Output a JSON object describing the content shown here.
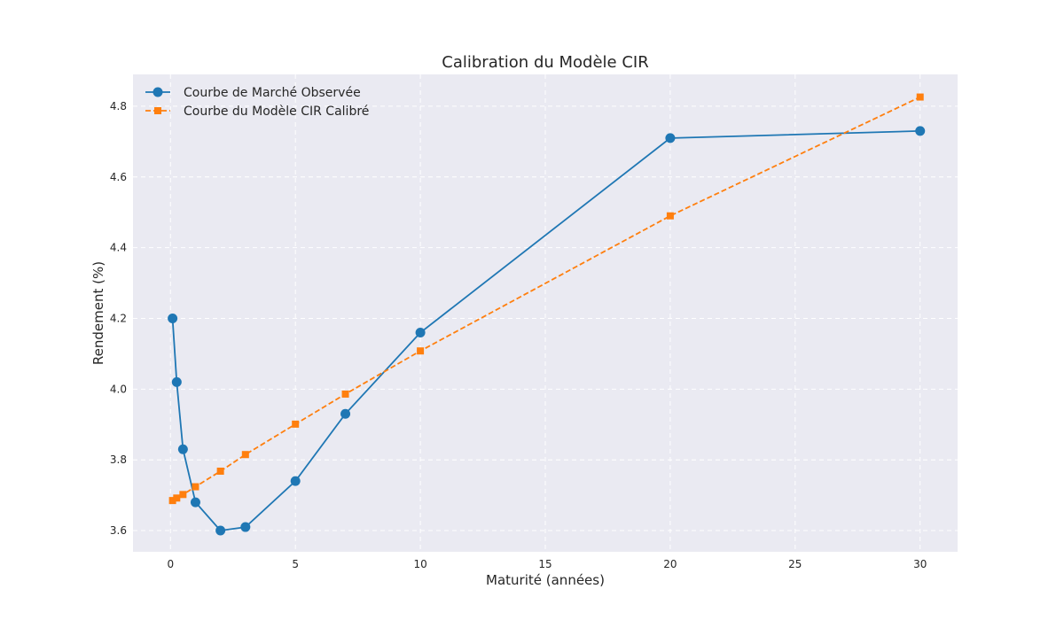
{
  "chart_data": {
    "type": "line",
    "title": "Calibration du Modèle CIR",
    "xlabel": "Maturité (années)",
    "ylabel": "Rendement (%)",
    "xlim": [
      -1.5,
      31.5
    ],
    "ylim": [
      3.54,
      4.89
    ],
    "xticks": [
      0,
      5,
      10,
      15,
      20,
      25,
      30
    ],
    "yticks": [
      3.6,
      3.8,
      4.0,
      4.2,
      4.4,
      4.6,
      4.8
    ],
    "xtick_labels": [
      "0",
      "5",
      "10",
      "15",
      "20",
      "25",
      "30"
    ],
    "ytick_labels": [
      "3.6",
      "3.8",
      "4.0",
      "4.2",
      "4.4",
      "4.6",
      "4.8"
    ],
    "grid": true,
    "grid_style": "dashed",
    "legend_position": "top-left",
    "background_color": "#eaeaf2",
    "series": [
      {
        "name": "Courbe de Marché Observée",
        "color": "#1f77b4",
        "marker": "circle",
        "linestyle": "solid",
        "x": [
          0.083,
          0.25,
          0.5,
          1,
          2,
          3,
          5,
          7,
          10,
          20,
          30
        ],
        "y": [
          4.2,
          4.02,
          3.83,
          3.68,
          3.6,
          3.61,
          3.74,
          3.93,
          4.16,
          4.71,
          4.73
        ]
      },
      {
        "name": "Courbe du Modèle CIR Calibré",
        "color": "#ff7f0e",
        "marker": "square",
        "linestyle": "dashed",
        "x": [
          0.083,
          0.25,
          0.5,
          1,
          2,
          3,
          5,
          7,
          10,
          20,
          30
        ],
        "y": [
          3.685,
          3.692,
          3.702,
          3.724,
          3.768,
          3.815,
          3.901,
          3.986,
          4.108,
          4.49,
          4.826
        ]
      }
    ]
  }
}
